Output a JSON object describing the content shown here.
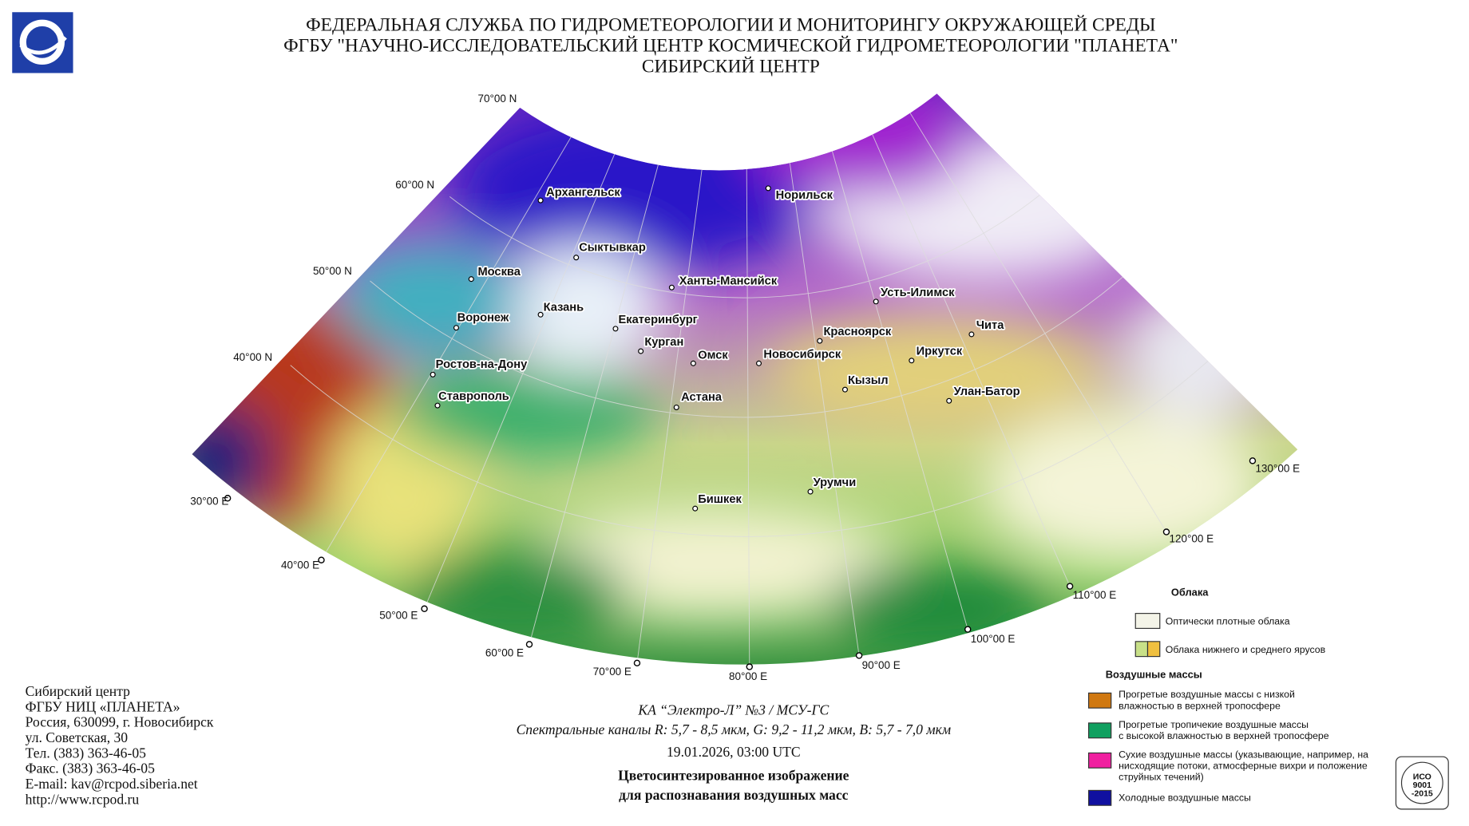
{
  "header": {
    "lines": [
      "ФЕДЕРАЛЬНАЯ СЛУЖБА ПО ГИДРОМЕТЕОРОЛОГИИ И МОНИТОРИНГУ ОКРУЖАЮЩЕЙ СРЕДЫ",
      "ФГБУ \"НАУЧНО-ИССЛЕДОВАТЕЛЬСКИЙ ЦЕНТР КОСМИЧЕСКОЙ ГИДРОМЕТЕОРОЛОГИИ \"ПЛАНЕТА\"",
      "СИБИРСКИЙ ЦЕНТР"
    ]
  },
  "map": {
    "lat_labels": [
      "70°00 N",
      "60°00 N",
      "50°00 N",
      "40°00 N"
    ],
    "lon_labels": [
      "30°00 E",
      "40°00 E",
      "50°00 E",
      "60°00 E",
      "70°00 E",
      "80°00 E",
      "90°00 E",
      "100°00 E",
      "110°00 E",
      "120°00 E",
      "130°00 E"
    ],
    "cities": [
      "Архангельск",
      "Норильск",
      "Сыктывкар",
      "Москва",
      "Ханты-Мансийск",
      "Усть-Илимск",
      "Казань",
      "Воронеж",
      "Екатеринбург",
      "Красноярск",
      "Чита",
      "Курган",
      "Омск",
      "Новосибирск",
      "Иркутск",
      "Ростов-на-Дону",
      "Кызыл",
      "Улан-Батор",
      "Ставрополь",
      "Астана",
      "Урумчи",
      "Бишкек"
    ]
  },
  "legend": {
    "clouds_title": "Облака",
    "clouds": [
      "Оптически плотные облака",
      "Облака нижнего и среднего ярусов"
    ],
    "airmass_title": "Воздушные массы",
    "airmasses": [
      [
        "Прогретые воздушные массы с низкой",
        "влажностью в верхней тропосфере"
      ],
      [
        "Прогретые тропичекие воздушные массы",
        "с высокой влажностью в верхней тропосфере"
      ],
      [
        "Сухие воздушные массы (указывающие, например, на",
        "нисходящие потоки, атмосферные вихри и положение",
        "струйных течений)"
      ],
      [
        "Холодные воздушные массы"
      ]
    ]
  },
  "caption": {
    "satellite": "КА “Электро-Л” №3 / МСУ-ГС",
    "channels": "Спектральные каналы R: 5,7 - 8,5 мкм, G: 9,2 - 11,2 мкм, B: 5,7 - 7,0 мкм",
    "datetime": "19.01.2026, 03:00 UTC",
    "title": [
      "Цветосинтезированное изображение",
      "для распознавания воздушных масс"
    ]
  },
  "contact": {
    "lines": [
      "Сибирский центр",
      "ФГБУ НИЦ «ПЛАНЕТА»",
      "Россия, 630099, г. Новосибирск",
      "ул. Советская, 30",
      "Тел. (383) 363-46-05",
      "Факс. (383) 363-46-05",
      "E-mail: kav@rcpod.siberia.net",
      "http://www.rcpod.ru"
    ]
  },
  "badge": {
    "lines": [
      "ИСО",
      "9001",
      "-2015"
    ]
  }
}
